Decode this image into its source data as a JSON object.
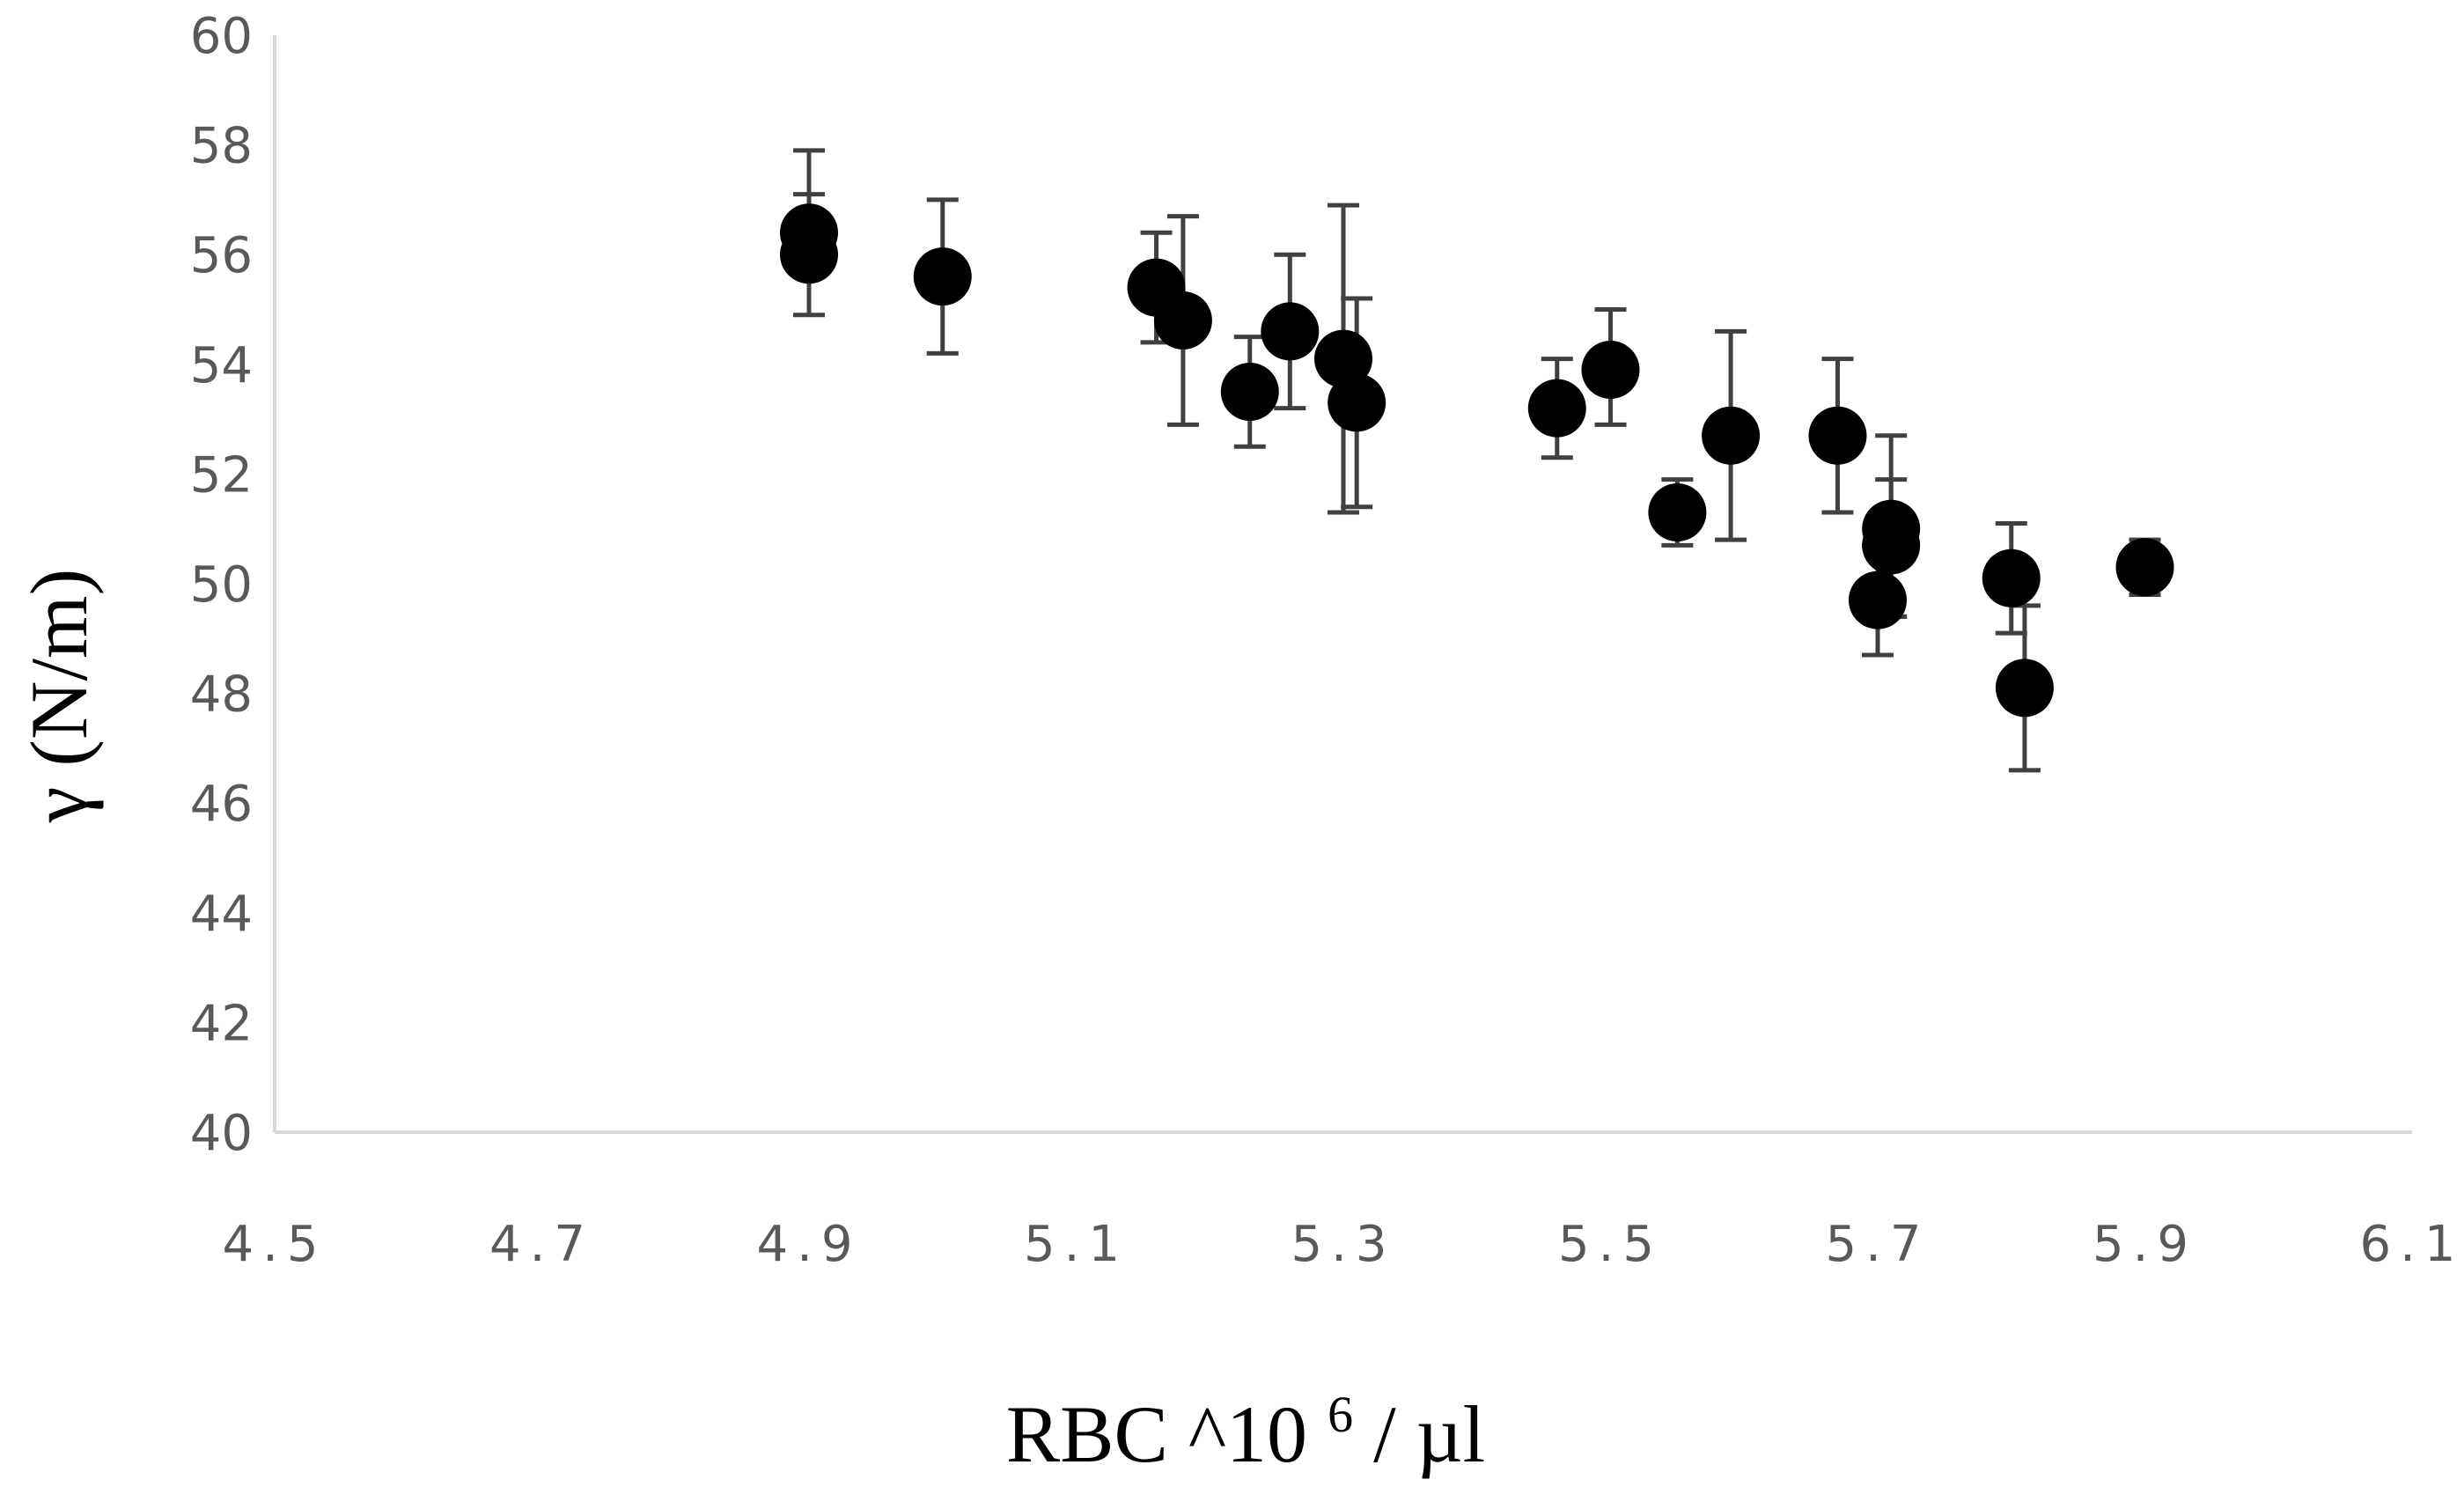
{
  "chart_data": {
    "type": "scatter",
    "title": "",
    "xlabel": "RBC ^10",
    "xlabel_sup": "6",
    "xlabel_suffix": "/ µl",
    "ylabel": "γ (N/m)",
    "xlim": [
      4.5,
      6.1
    ],
    "ylim": [
      40,
      60
    ],
    "xticks": [
      "4.5",
      "4.7",
      "4.9",
      "5.1",
      "5.3",
      "5.5",
      "5.7",
      "5.9",
      "6.1"
    ],
    "yticks": [
      "40",
      "42",
      "44",
      "46",
      "48",
      "50",
      "52",
      "54",
      "56",
      "58",
      "60"
    ],
    "grid": false,
    "legend": false,
    "colors": {
      "marker": "#000000",
      "error_bar": "#404040",
      "axis": "#d9d9d9",
      "tick_text": "#595959"
    },
    "points": [
      {
        "x": 4.9,
        "y": 56.4,
        "err_low": 56.0,
        "err_high": 57.9
      },
      {
        "x": 4.9,
        "y": 56.0,
        "err_low": 54.9,
        "err_high": 57.1
      },
      {
        "x": 5.0,
        "y": 55.6,
        "err_low": 54.2,
        "err_high": 57.0
      },
      {
        "x": 5.16,
        "y": 55.4,
        "err_low": 54.4,
        "err_high": 56.4
      },
      {
        "x": 5.18,
        "y": 54.8,
        "err_low": 52.9,
        "err_high": 56.7
      },
      {
        "x": 5.23,
        "y": 53.5,
        "err_low": 52.5,
        "err_high": 54.5
      },
      {
        "x": 5.26,
        "y": 54.6,
        "err_low": 53.2,
        "err_high": 56.0
      },
      {
        "x": 5.3,
        "y": 54.1,
        "err_low": 51.3,
        "err_high": 56.9
      },
      {
        "x": 5.31,
        "y": 53.3,
        "err_low": 51.4,
        "err_high": 55.2
      },
      {
        "x": 5.46,
        "y": 53.2,
        "err_low": 52.3,
        "err_high": 54.1
      },
      {
        "x": 5.5,
        "y": 53.9,
        "err_low": 52.9,
        "err_high": 55.0
      },
      {
        "x": 5.55,
        "y": 51.3,
        "err_low": 50.7,
        "err_high": 51.9
      },
      {
        "x": 5.59,
        "y": 52.7,
        "err_low": 50.8,
        "err_high": 54.6
      },
      {
        "x": 5.67,
        "y": 52.7,
        "err_low": 51.3,
        "err_high": 54.1
      },
      {
        "x": 5.7,
        "y": 49.7,
        "err_low": 48.7,
        "err_high": 50.7
      },
      {
        "x": 5.71,
        "y": 51.0,
        "err_low": 49.4,
        "err_high": 52.7
      },
      {
        "x": 5.71,
        "y": 50.7,
        "err_low": 49.4,
        "err_high": 51.9
      },
      {
        "x": 5.8,
        "y": 50.1,
        "err_low": 49.1,
        "err_high": 51.1
      },
      {
        "x": 5.81,
        "y": 48.1,
        "err_low": 46.6,
        "err_high": 49.6
      },
      {
        "x": 5.9,
        "y": 50.3,
        "err_low": 49.8,
        "err_high": 50.8
      }
    ]
  }
}
